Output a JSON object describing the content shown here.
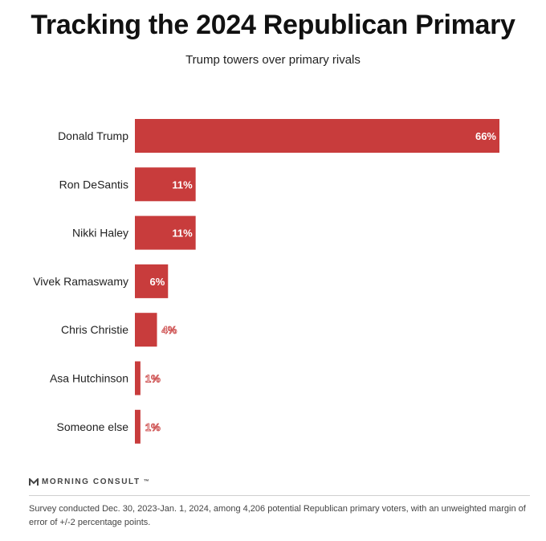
{
  "header": {
    "title": "Tracking the 2024 Republican Primary",
    "subtitle": "Trump towers over primary rivals"
  },
  "chart_data": {
    "type": "bar",
    "orientation": "horizontal",
    "categories": [
      "Donald Trump",
      "Ron DeSantis",
      "Nikki Haley",
      "Vivek Ramaswamy",
      "Chris Christie",
      "Asa Hutchinson",
      "Someone else"
    ],
    "values": [
      66,
      11,
      11,
      6,
      4,
      1,
      1
    ],
    "data_labels": [
      "66%",
      "11%",
      "11%",
      "6%",
      "4%",
      "1%",
      "1%"
    ],
    "title": "Tracking the 2024 Republican Primary",
    "subtitle": "Trump towers over primary rivals",
    "xlabel": "",
    "ylabel": "",
    "xlim": [
      0,
      66
    ],
    "grid": false,
    "legend": "none",
    "bar_color": "#c83c3c"
  },
  "footer": {
    "brand": "MORNING CONSULT",
    "brand_mark": "™",
    "note": "Survey conducted Dec. 30, 2023-Jan. 1, 2024, among 4,206 potential Republican primary voters, with an unweighted margin of error of +/-2 percentage points."
  }
}
